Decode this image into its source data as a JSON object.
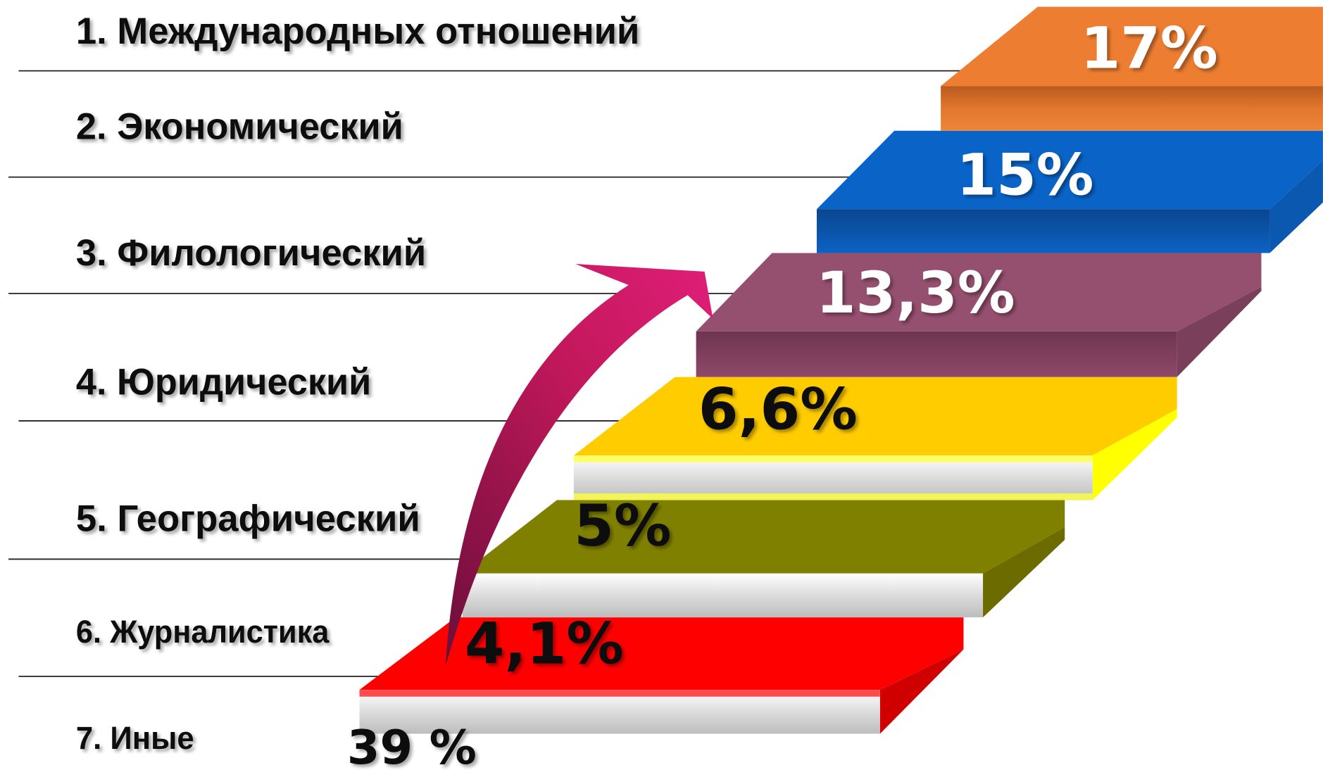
{
  "steps": [
    {
      "label": "1. Международных отношений",
      "value": "17%"
    },
    {
      "label": "2. Экономический",
      "value": "15%"
    },
    {
      "label": "3. Филологический",
      "value": "13,3%"
    },
    {
      "label": "4. Юридический",
      "value": "6,6%"
    },
    {
      "label": "5. Географический",
      "value": "5%"
    },
    {
      "label": "6. Журналистика",
      "value": "4,1%"
    },
    {
      "label": "7. Иные",
      "value": "39 %"
    }
  ]
}
